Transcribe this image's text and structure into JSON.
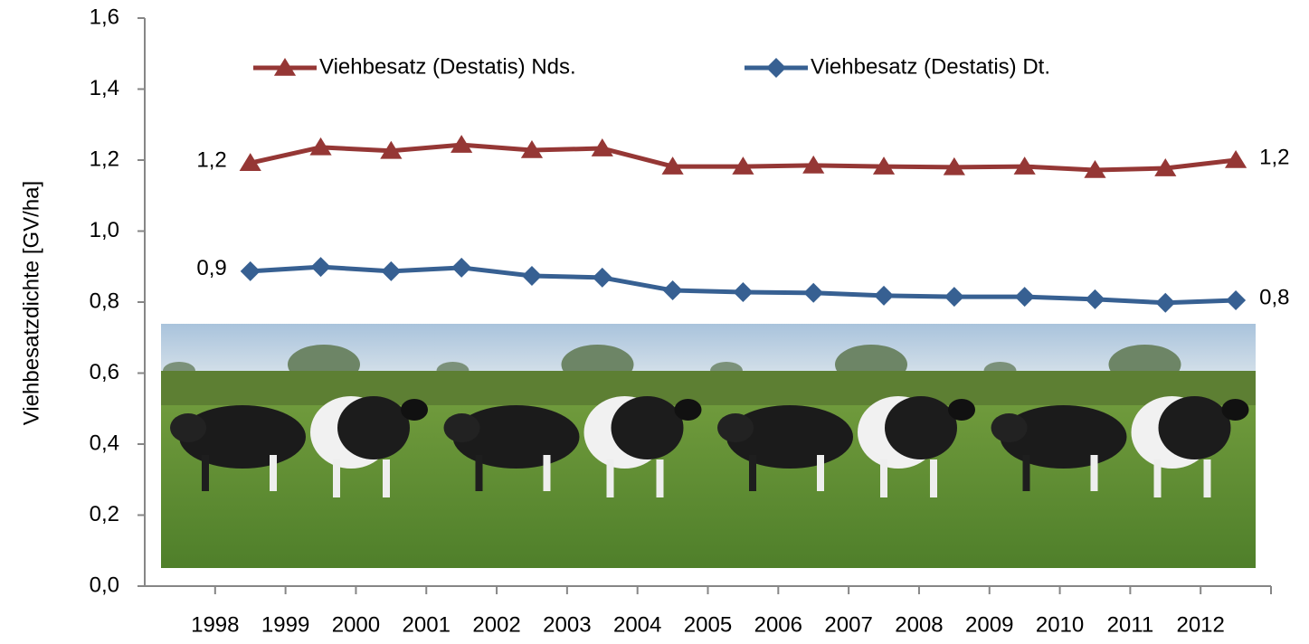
{
  "chart_data": {
    "type": "line",
    "y_label": "Viehbesatzdichte [GV/ha]",
    "categories": [
      "1998",
      "1999",
      "2000",
      "2001",
      "2002",
      "2003",
      "2004",
      "2005",
      "2006",
      "2007",
      "2008",
      "2009",
      "2010",
      "2011",
      "2012"
    ],
    "series": [
      {
        "name": "Viehbesatz (Destatis) Nds.",
        "color": "#953735",
        "marker": "triangle",
        "values": [
          1.192,
          1.236,
          1.226,
          1.243,
          1.228,
          1.233,
          1.182,
          1.182,
          1.185,
          1.182,
          1.18,
          1.182,
          1.172,
          1.177,
          1.2
        ],
        "value_labels": [
          "1,2",
          null,
          null,
          null,
          null,
          null,
          null,
          null,
          null,
          null,
          null,
          null,
          null,
          null,
          "1,2"
        ]
      },
      {
        "name": "Viehbesatz (Destatis) Dt.",
        "color": "#376092",
        "marker": "diamond",
        "values": [
          0.887,
          0.899,
          0.887,
          0.897,
          0.874,
          0.869,
          0.833,
          0.828,
          0.826,
          0.818,
          0.815,
          0.815,
          0.808,
          0.798,
          0.805
        ],
        "value_labels": [
          "0,9",
          null,
          null,
          null,
          null,
          null,
          null,
          null,
          null,
          null,
          null,
          null,
          null,
          null,
          "0,8"
        ]
      }
    ],
    "ylim": [
      0,
      1.6
    ],
    "yticks": [
      {
        "value": 0,
        "label": "0,0"
      },
      {
        "value": 0.2,
        "label": "0,2"
      },
      {
        "value": 0.4,
        "label": "0,4"
      },
      {
        "value": 0.6,
        "label": "0,6"
      },
      {
        "value": 0.8,
        "label": "0,8"
      },
      {
        "value": 1.0,
        "label": "1,0"
      },
      {
        "value": 1.2,
        "label": "1,2"
      },
      {
        "value": 1.4,
        "label": "1,4"
      },
      {
        "value": 1.6,
        "label": "1,6"
      }
    ],
    "grid": false,
    "legend": "top"
  }
}
